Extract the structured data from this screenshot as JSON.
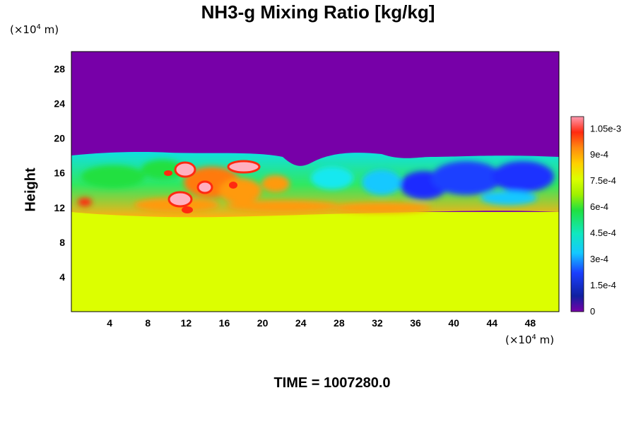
{
  "title": "NH3-g Mixing Ratio [kg/kg]",
  "time_label": "TIME = 1007280.0",
  "chart_data": {
    "type": "heatmap",
    "title": "NH3-g Mixing Ratio [kg/kg]",
    "xlabel": "",
    "ylabel": "Height",
    "x_unit": {
      "prefix": "(×10",
      "exp": "4",
      "suffix": " m)"
    },
    "y_unit": {
      "prefix": "(×10",
      "exp": "4",
      "suffix": " m)"
    },
    "xlim": [
      0,
      51
    ],
    "ylim": [
      0,
      30
    ],
    "x_ticks": [
      4,
      8,
      12,
      16,
      20,
      24,
      28,
      32,
      36,
      40,
      44,
      48
    ],
    "y_ticks": [
      4,
      8,
      12,
      16,
      20,
      24,
      28
    ],
    "colorbar": {
      "range": [
        0,
        0.00112
      ],
      "labels": [
        {
          "value": 0,
          "text": "0"
        },
        {
          "value": 0.00015,
          "text": "1.5e-4"
        },
        {
          "value": 0.0003,
          "text": "3e-4"
        },
        {
          "value": 0.00045,
          "text": "4.5e-4"
        },
        {
          "value": 0.0006,
          "text": "6e-4"
        },
        {
          "value": 0.00075,
          "text": "7.5e-4"
        },
        {
          "value": 0.0009,
          "text": "9e-4"
        },
        {
          "value": 0.00105,
          "text": "1.05e-3"
        }
      ]
    },
    "layers": [
      {
        "name": "upper",
        "y_range": [
          18,
          30
        ],
        "value": 0
      },
      {
        "name": "mixed",
        "y_range": [
          11,
          18
        ],
        "value_range": [
          0.0001,
          0.00112
        ]
      },
      {
        "name": "lower",
        "y_range": [
          0,
          11
        ],
        "value": 0.00078
      }
    ],
    "colors": {
      "upper": "#7700a8",
      "lower": "#dcff00",
      "blue": "#1a2cff",
      "cyan": "#14e8f0",
      "green": "#20e040",
      "orange": "#ff9a10",
      "red": "#ff2a10",
      "pink": "#ffb0c0"
    },
    "grid": false
  }
}
